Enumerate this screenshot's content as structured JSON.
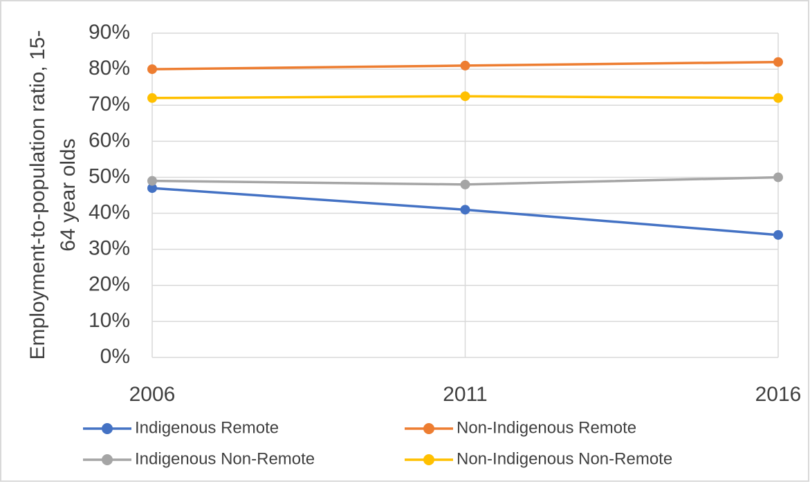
{
  "chart_data": {
    "type": "line",
    "y_label": "Employment-to-population ratio, 15-64 year olds",
    "x": [
      2006,
      2011,
      2016
    ],
    "xlim": [
      2006,
      2016
    ],
    "xticks": [
      2006,
      2011,
      2016
    ],
    "ylim": [
      0,
      90
    ],
    "yticks": [
      {
        "value": 0,
        "label": "0%"
      },
      {
        "value": 10,
        "label": "10%"
      },
      {
        "value": 20,
        "label": "20%"
      },
      {
        "value": 30,
        "label": "30%"
      },
      {
        "value": 40,
        "label": "40%"
      },
      {
        "value": 50,
        "label": "50%"
      },
      {
        "value": 60,
        "label": "60%"
      },
      {
        "value": 70,
        "label": "70%"
      },
      {
        "value": 80,
        "label": "80%"
      },
      {
        "value": 90,
        "label": "90%"
      }
    ],
    "grid": true,
    "legend": "bottom",
    "series": [
      {
        "name": "Indigenous Remote",
        "color": "#4472c4",
        "values": [
          47,
          41,
          34
        ]
      },
      {
        "name": "Non-Indigenous Remote",
        "color": "#ed7d31",
        "values": [
          80,
          81,
          82
        ]
      },
      {
        "name": "Indigenous Non-Remote",
        "color": "#a5a5a5",
        "values": [
          49,
          48,
          50
        ]
      },
      {
        "name": "Non-Indigenous Non-Remote",
        "color": "#ffc000",
        "values": [
          72,
          72.5,
          72
        ]
      }
    ]
  }
}
